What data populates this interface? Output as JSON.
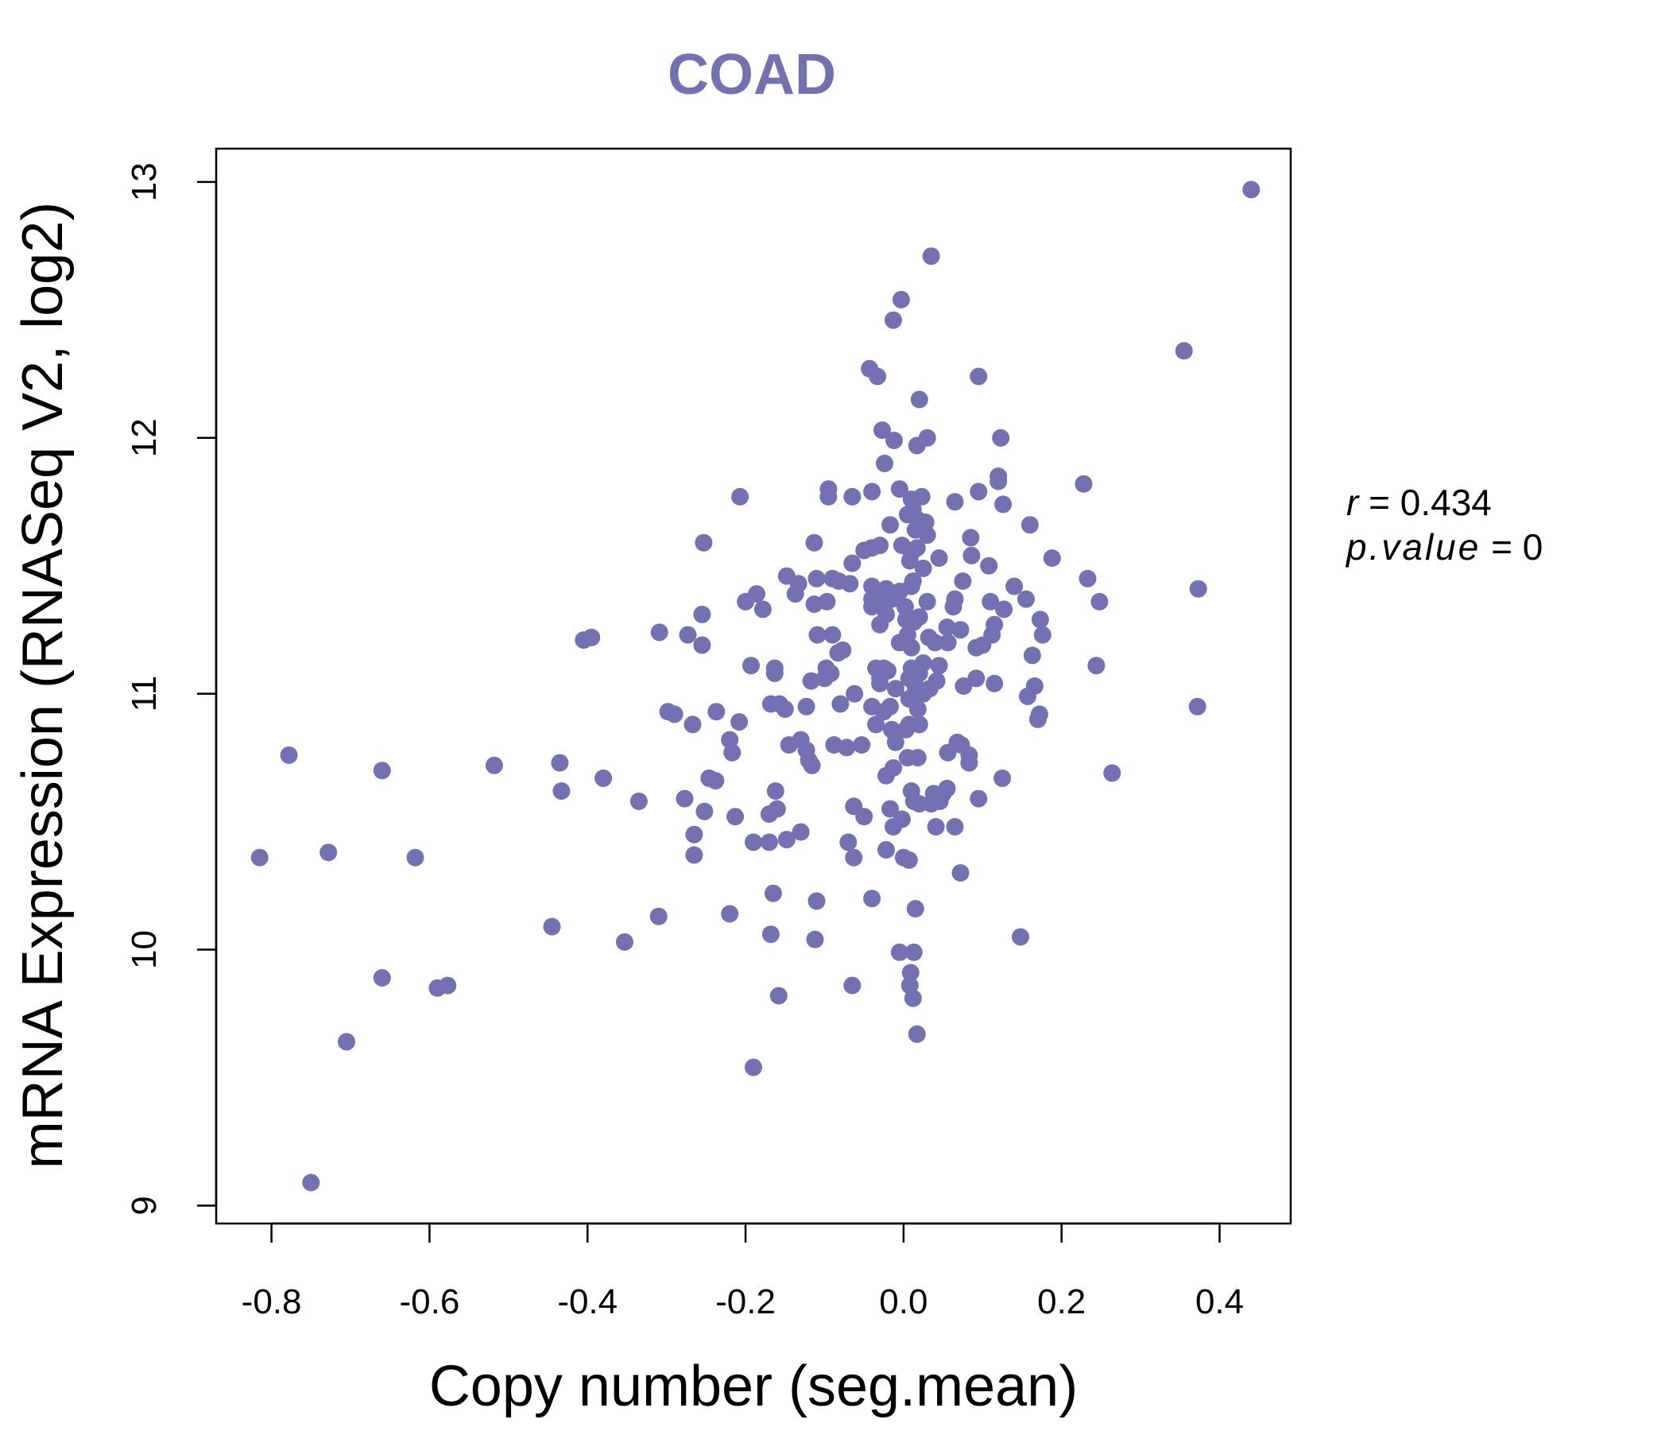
{
  "chart_data": {
    "type": "scatter",
    "title": "COAD",
    "xlabel": "Copy number (seg.mean)",
    "ylabel": "mRNA Expression (RNASeq V2, log2)",
    "xlim": [
      -0.87,
      0.49
    ],
    "ylim": [
      8.93,
      13.13
    ],
    "xticks": [
      -0.8,
      -0.6,
      -0.4,
      -0.2,
      0.0,
      0.2,
      0.4
    ],
    "xtick_labels": [
      "-0.8",
      "-0.6",
      "-0.4",
      "-0.2",
      "0.0",
      "0.2",
      "0.4"
    ],
    "yticks": [
      9,
      10,
      11,
      12,
      13
    ],
    "ytick_labels": [
      "9",
      "10",
      "11",
      "12",
      "13"
    ],
    "grid": false,
    "color": "#7470b4",
    "stats": {
      "r_label": "r",
      "r_value": "0.434",
      "p_label": "p.value",
      "p_value": "0"
    },
    "points": [
      [
        0.44,
        12.97
      ],
      [
        0.035,
        12.71
      ],
      [
        -0.003,
        12.54
      ],
      [
        -0.013,
        12.46
      ],
      [
        0.355,
        12.34
      ],
      [
        -0.043,
        12.27
      ],
      [
        -0.033,
        12.24
      ],
      [
        0.095,
        12.24
      ],
      [
        0.02,
        12.15
      ],
      [
        -0.027,
        12.03
      ],
      [
        0.03,
        12.0
      ],
      [
        0.123,
        12.0
      ],
      [
        -0.012,
        11.99
      ],
      [
        0.017,
        11.97
      ],
      [
        -0.024,
        11.9
      ],
      [
        0.12,
        11.85
      ],
      [
        0.12,
        11.83
      ],
      [
        -0.095,
        11.8
      ],
      [
        -0.005,
        11.8
      ],
      [
        0.228,
        11.82
      ],
      [
        -0.095,
        11.77
      ],
      [
        -0.065,
        11.77
      ],
      [
        -0.04,
        11.79
      ],
      [
        0.095,
        11.79
      ],
      [
        -0.207,
        11.77
      ],
      [
        0.01,
        11.76
      ],
      [
        0.023,
        11.77
      ],
      [
        0.065,
        11.75
      ],
      [
        0.126,
        11.74
      ],
      [
        0.012,
        11.72
      ],
      [
        0.005,
        11.7
      ],
      [
        0.018,
        11.68
      ],
      [
        -0.017,
        11.66
      ],
      [
        0.028,
        11.67
      ],
      [
        0.16,
        11.66
      ],
      [
        0.015,
        11.64
      ],
      [
        0.03,
        11.62
      ],
      [
        0.025,
        11.64
      ],
      [
        0.085,
        11.61
      ],
      [
        -0.253,
        11.59
      ],
      [
        -0.113,
        11.59
      ],
      [
        -0.04,
        11.57
      ],
      [
        -0.03,
        11.58
      ],
      [
        -0.05,
        11.56
      ],
      [
        -0.002,
        11.58
      ],
      [
        0.017,
        11.57
      ],
      [
        0.01,
        11.55
      ],
      [
        0.045,
        11.53
      ],
      [
        0.086,
        11.54
      ],
      [
        0.188,
        11.53
      ],
      [
        0.008,
        11.52
      ],
      [
        -0.065,
        11.51
      ],
      [
        0.108,
        11.5
      ],
      [
        0.025,
        11.49
      ],
      [
        -0.148,
        11.46
      ],
      [
        -0.11,
        11.45
      ],
      [
        0.075,
        11.44
      ],
      [
        0.233,
        11.45
      ],
      [
        0.012,
        11.44
      ],
      [
        -0.133,
        11.43
      ],
      [
        -0.09,
        11.45
      ],
      [
        -0.082,
        11.44
      ],
      [
        -0.068,
        11.43
      ],
      [
        -0.04,
        11.42
      ],
      [
        -0.03,
        11.4
      ],
      [
        -0.022,
        11.41
      ],
      [
        -0.005,
        11.4
      ],
      [
        0.01,
        11.42
      ],
      [
        0.14,
        11.42
      ],
      [
        0.373,
        11.41
      ],
      [
        -0.186,
        11.39
      ],
      [
        -0.137,
        11.39
      ],
      [
        -0.2,
        11.36
      ],
      [
        -0.097,
        11.36
      ],
      [
        -0.04,
        11.37
      ],
      [
        -0.015,
        11.37
      ],
      [
        0.03,
        11.36
      ],
      [
        0.065,
        11.37
      ],
      [
        0.11,
        11.36
      ],
      [
        0.155,
        11.37
      ],
      [
        0.248,
        11.36
      ],
      [
        -0.113,
        11.35
      ],
      [
        -0.04,
        11.34
      ],
      [
        -0.03,
        11.35
      ],
      [
        0.002,
        11.34
      ],
      [
        0.063,
        11.34
      ],
      [
        0.127,
        11.33
      ],
      [
        -0.178,
        11.33
      ],
      [
        -0.255,
        11.31
      ],
      [
        -0.022,
        11.31
      ],
      [
        0.005,
        11.3
      ],
      [
        0.02,
        11.3
      ],
      [
        0.003,
        11.29
      ],
      [
        0.173,
        11.29
      ],
      [
        0.115,
        11.27
      ],
      [
        -0.03,
        11.27
      ],
      [
        0.013,
        11.28
      ],
      [
        0.055,
        11.26
      ],
      [
        0.072,
        11.25
      ],
      [
        -0.309,
        11.24
      ],
      [
        -0.273,
        11.23
      ],
      [
        -0.395,
        11.22
      ],
      [
        -0.405,
        11.21
      ],
      [
        -0.109,
        11.23
      ],
      [
        -0.09,
        11.23
      ],
      [
        0.005,
        11.23
      ],
      [
        0.032,
        11.22
      ],
      [
        0.04,
        11.2
      ],
      [
        0.056,
        11.2
      ],
      [
        0.112,
        11.23
      ],
      [
        0.176,
        11.23
      ],
      [
        -0.255,
        11.19
      ],
      [
        -0.005,
        11.2
      ],
      [
        0.01,
        11.18
      ],
      [
        0.1,
        11.19
      ],
      [
        0.092,
        11.18
      ],
      [
        0.163,
        11.15
      ],
      [
        -0.083,
        11.16
      ],
      [
        -0.077,
        11.17
      ],
      [
        -0.193,
        11.11
      ],
      [
        -0.163,
        11.1
      ],
      [
        -0.163,
        11.08
      ],
      [
        -0.098,
        11.1
      ],
      [
        -0.092,
        11.08
      ],
      [
        -0.035,
        11.1
      ],
      [
        -0.025,
        11.1
      ],
      [
        -0.02,
        11.09
      ],
      [
        -0.03,
        11.06
      ],
      [
        0.01,
        11.1
      ],
      [
        0.02,
        11.08
      ],
      [
        0.025,
        11.12
      ],
      [
        0.045,
        11.11
      ],
      [
        0.244,
        11.11
      ],
      [
        -0.117,
        11.05
      ],
      [
        -0.1,
        11.06
      ],
      [
        -0.03,
        11.04
      ],
      [
        0.007,
        11.06
      ],
      [
        0.014,
        11.04
      ],
      [
        0.042,
        11.05
      ],
      [
        0.092,
        11.06
      ],
      [
        0.115,
        11.04
      ],
      [
        0.166,
        11.03
      ],
      [
        0.076,
        11.03
      ],
      [
        -0.062,
        11.0
      ],
      [
        -0.01,
        11.02
      ],
      [
        0.015,
        11.01
      ],
      [
        0.025,
        11.0
      ],
      [
        0.033,
        11.02
      ],
      [
        0.157,
        10.99
      ],
      [
        -0.168,
        10.96
      ],
      [
        -0.157,
        10.96
      ],
      [
        -0.123,
        10.95
      ],
      [
        -0.08,
        10.96
      ],
      [
        -0.04,
        10.95
      ],
      [
        -0.017,
        10.95
      ],
      [
        0.007,
        10.98
      ],
      [
        0.372,
        10.95
      ],
      [
        -0.298,
        10.93
      ],
      [
        -0.29,
        10.92
      ],
      [
        -0.237,
        10.93
      ],
      [
        -0.15,
        10.94
      ],
      [
        -0.025,
        10.93
      ],
      [
        0.018,
        10.94
      ],
      [
        0.172,
        10.92
      ],
      [
        0.17,
        10.9
      ],
      [
        -0.208,
        10.89
      ],
      [
        -0.267,
        10.88
      ],
      [
        -0.035,
        10.88
      ],
      [
        0.007,
        10.88
      ],
      [
        0.02,
        10.88
      ],
      [
        -0.015,
        10.86
      ],
      [
        -0.012,
        10.85
      ],
      [
        0.003,
        10.86
      ],
      [
        -0.22,
        10.82
      ],
      [
        -0.13,
        10.82
      ],
      [
        -0.088,
        10.8
      ],
      [
        -0.145,
        10.8
      ],
      [
        -0.01,
        10.81
      ],
      [
        0.068,
        10.81
      ],
      [
        0.073,
        10.8
      ],
      [
        -0.072,
        10.79
      ],
      [
        -0.053,
        10.8
      ],
      [
        -0.217,
        10.77
      ],
      [
        -0.123,
        10.78
      ],
      [
        0.005,
        10.75
      ],
      [
        0.018,
        10.75
      ],
      [
        0.056,
        10.77
      ],
      [
        0.083,
        10.76
      ],
      [
        0.083,
        10.73
      ],
      [
        -0.778,
        10.76
      ],
      [
        -0.435,
        10.73
      ],
      [
        -0.518,
        10.72
      ],
      [
        -0.12,
        10.74
      ],
      [
        -0.116,
        10.72
      ],
      [
        -0.022,
        10.68
      ],
      [
        -0.013,
        10.71
      ],
      [
        -0.66,
        10.7
      ],
      [
        -0.38,
        10.67
      ],
      [
        -0.246,
        10.67
      ],
      [
        -0.238,
        10.66
      ],
      [
        0.264,
        10.69
      ],
      [
        0.125,
        10.67
      ],
      [
        -0.433,
        10.62
      ],
      [
        -0.162,
        10.62
      ],
      [
        -0.335,
        10.58
      ],
      [
        -0.277,
        10.59
      ],
      [
        0.01,
        10.62
      ],
      [
        0.038,
        10.61
      ],
      [
        0.05,
        10.61
      ],
      [
        0.055,
        10.63
      ],
      [
        0.013,
        10.58
      ],
      [
        0.035,
        10.57
      ],
      [
        0.046,
        10.58
      ],
      [
        0.095,
        10.59
      ],
      [
        -0.063,
        10.56
      ],
      [
        -0.16,
        10.55
      ],
      [
        -0.252,
        10.54
      ],
      [
        -0.017,
        10.55
      ],
      [
        0.02,
        10.57
      ],
      [
        -0.213,
        10.52
      ],
      [
        -0.17,
        10.53
      ],
      [
        -0.05,
        10.52
      ],
      [
        -0.002,
        10.51
      ],
      [
        -0.013,
        10.48
      ],
      [
        0.041,
        10.48
      ],
      [
        0.065,
        10.48
      ],
      [
        -0.265,
        10.45
      ],
      [
        -0.13,
        10.46
      ],
      [
        -0.148,
        10.43
      ],
      [
        -0.19,
        10.42
      ],
      [
        -0.17,
        10.42
      ],
      [
        -0.07,
        10.42
      ],
      [
        -0.815,
        10.36
      ],
      [
        -0.728,
        10.38
      ],
      [
        -0.618,
        10.36
      ],
      [
        -0.265,
        10.37
      ],
      [
        -0.063,
        10.36
      ],
      [
        -0.022,
        10.39
      ],
      [
        0.0,
        10.36
      ],
      [
        0.007,
        10.35
      ],
      [
        0.072,
        10.3
      ],
      [
        -0.165,
        10.22
      ],
      [
        -0.11,
        10.19
      ],
      [
        -0.04,
        10.2
      ],
      [
        0.015,
        10.16
      ],
      [
        -0.22,
        10.14
      ],
      [
        -0.31,
        10.13
      ],
      [
        -0.445,
        10.09
      ],
      [
        -0.353,
        10.03
      ],
      [
        -0.168,
        10.06
      ],
      [
        -0.112,
        10.04
      ],
      [
        0.148,
        10.05
      ],
      [
        -0.005,
        9.99
      ],
      [
        0.013,
        9.99
      ],
      [
        0.009,
        9.91
      ],
      [
        0.008,
        9.86
      ],
      [
        -0.66,
        9.89
      ],
      [
        -0.59,
        9.85
      ],
      [
        -0.577,
        9.86
      ],
      [
        -0.065,
        9.86
      ],
      [
        -0.158,
        9.82
      ],
      [
        0.012,
        9.81
      ],
      [
        0.017,
        9.67
      ],
      [
        -0.705,
        9.64
      ],
      [
        -0.19,
        9.54
      ],
      [
        -0.75,
        9.09
      ]
    ]
  }
}
